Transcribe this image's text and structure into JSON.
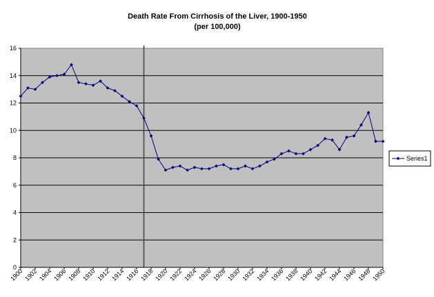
{
  "chart_data": {
    "type": "line",
    "title": "Death Rate From Cirrhosis of the Liver, 1900-1950",
    "subtitle": "(per 100,000)",
    "xlabel": "",
    "ylabel": "",
    "xlim": [
      1900,
      1950
    ],
    "ylim": [
      0,
      16
    ],
    "y_ticks": [
      0,
      2,
      4,
      6,
      8,
      10,
      12,
      14,
      16
    ],
    "x_tick_labels": [
      "1900",
      "1902",
      "1904",
      "1906",
      "1908",
      "1910",
      "1912",
      "1914",
      "1916",
      "1918",
      "1920",
      "1922",
      "1924",
      "1926",
      "1928",
      "1930",
      "1932",
      "1934",
      "1936",
      "1938",
      "1940",
      "1942",
      "1944",
      "1946",
      "1948",
      "1950"
    ],
    "grid": "horizontal",
    "legend_position": "right",
    "plot_background": "#c0c0c0",
    "series_color": "#000080",
    "vertical_marker_at": 1917,
    "series": [
      {
        "name": "Series1",
        "x": [
          1900,
          1901,
          1902,
          1903,
          1904,
          1905,
          1906,
          1907,
          1908,
          1909,
          1910,
          1911,
          1912,
          1913,
          1914,
          1915,
          1916,
          1917,
          1918,
          1919,
          1920,
          1921,
          1922,
          1923,
          1924,
          1925,
          1926,
          1927,
          1928,
          1929,
          1930,
          1931,
          1932,
          1933,
          1934,
          1935,
          1936,
          1937,
          1938,
          1939,
          1940,
          1941,
          1942,
          1943,
          1944,
          1945,
          1946,
          1947,
          1948,
          1949,
          1950
        ],
        "values": [
          12.5,
          13.1,
          13.0,
          13.5,
          13.9,
          14.0,
          14.1,
          14.8,
          13.5,
          13.4,
          13.3,
          13.6,
          13.1,
          12.9,
          12.5,
          12.1,
          11.8,
          10.9,
          9.6,
          7.9,
          7.1,
          7.3,
          7.4,
          7.1,
          7.3,
          7.2,
          7.2,
          7.4,
          7.5,
          7.2,
          7.2,
          7.4,
          7.2,
          7.4,
          7.7,
          7.9,
          8.3,
          8.5,
          8.3,
          8.3,
          8.6,
          8.9,
          9.4,
          9.3,
          8.6,
          9.5,
          9.6,
          10.4,
          11.3,
          9.2,
          9.2
        ]
      }
    ]
  }
}
